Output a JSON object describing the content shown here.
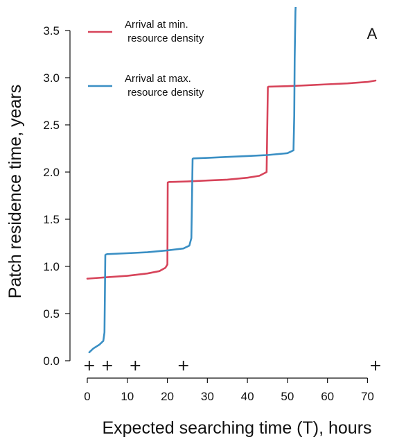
{
  "chart_data": {
    "type": "line",
    "panel_label": "A",
    "xlabel": "Expected searching time (T), hours",
    "ylabel": "Patch residence time, years",
    "xlim": [
      0,
      72
    ],
    "ylim": [
      0,
      3.7
    ],
    "xticks": [
      0,
      10,
      20,
      30,
      40,
      50,
      60,
      70
    ],
    "yticks": [
      0.0,
      0.5,
      1.0,
      1.5,
      2.0,
      2.5,
      3.0,
      3.5
    ],
    "ytick_labels": [
      "0.0",
      "0.5",
      "1.0",
      "1.5",
      "2.0",
      "2.5",
      "3.0",
      "3.5"
    ],
    "grid": false,
    "legend_position": "top-left",
    "markers": {
      "symbol": "+",
      "x": [
        0.5,
        5,
        12,
        24,
        72
      ]
    },
    "series": [
      {
        "name": "Arrival at min.\n resource density",
        "legend_lines": [
          "Arrival at min.",
          " resource density"
        ],
        "color": "#d7445a",
        "x": [
          0,
          5,
          10,
          15,
          18,
          19.5,
          20,
          20.1,
          20.5,
          25,
          30,
          35,
          40,
          43,
          44.8,
          45.1,
          45.3,
          50,
          55,
          60,
          65,
          70,
          72
        ],
        "y": [
          0.87,
          0.885,
          0.9,
          0.925,
          0.95,
          0.985,
          1.02,
          1.89,
          1.895,
          1.9,
          1.91,
          1.92,
          1.94,
          1.96,
          2.0,
          2.9,
          2.905,
          2.91,
          2.92,
          2.93,
          2.94,
          2.955,
          2.97
        ]
      },
      {
        "name": "Arrival at max.\n resource density",
        "legend_lines": [
          "Arrival at max.",
          " resource density"
        ],
        "color": "#3a8fc4",
        "x": [
          0.5,
          1.5,
          3,
          4,
          4.3,
          4.5,
          4.6,
          5,
          10,
          15,
          20,
          24,
          25.5,
          26,
          26.3,
          26.5,
          30,
          35,
          40,
          45,
          50,
          51.5,
          51.7,
          51.8,
          52,
          52.1,
          52.2
        ],
        "y": [
          0.09,
          0.13,
          0.17,
          0.21,
          0.3,
          1.12,
          1.125,
          1.13,
          1.14,
          1.15,
          1.17,
          1.19,
          1.22,
          1.3,
          2.14,
          2.145,
          2.15,
          2.16,
          2.17,
          2.18,
          2.2,
          2.23,
          2.6,
          3.2,
          3.7,
          3.8,
          3.9
        ]
      }
    ]
  }
}
